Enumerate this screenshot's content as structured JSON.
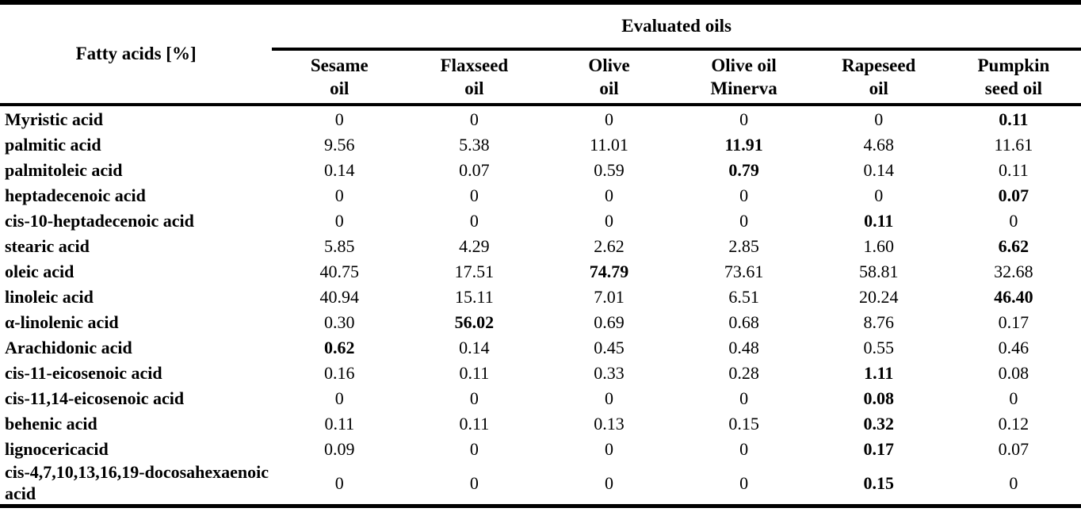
{
  "table": {
    "corner_header": "Fatty acids [%]",
    "group_header": "Evaluated oils",
    "columns": [
      {
        "key": "sesame-oil",
        "line1": "Sesame",
        "line2": "oil"
      },
      {
        "key": "flaxseed-oil",
        "line1": "Flaxseed",
        "line2": "oil"
      },
      {
        "key": "olive-oil",
        "line1": "Olive",
        "line2": "oil"
      },
      {
        "key": "olive-oil-minerva",
        "line1": "Olive oil",
        "line2": "Minerva"
      },
      {
        "key": "rapeseed-oil",
        "line1": "Rapeseed",
        "line2": "oil"
      },
      {
        "key": "pumpkin-seed-oil",
        "line1": "Pumpkin",
        "line2": "seed oil"
      }
    ],
    "rows": [
      {
        "label": "Myristic acid",
        "values": [
          "0",
          "0",
          "0",
          "0",
          "0",
          "0.11"
        ],
        "bold": [
          5
        ]
      },
      {
        "label": "palmitic acid",
        "values": [
          "9.56",
          "5.38",
          "11.01",
          "11.91",
          "4.68",
          "11.61"
        ],
        "bold": [
          3
        ]
      },
      {
        "label": "palmitoleic acid",
        "values": [
          "0.14",
          "0.07",
          "0.59",
          "0.79",
          "0.14",
          "0.11"
        ],
        "bold": [
          3
        ]
      },
      {
        "label": "heptadecenoic acid",
        "values": [
          "0",
          "0",
          "0",
          "0",
          "0",
          "0.07"
        ],
        "bold": [
          5
        ]
      },
      {
        "label": "cis-10-heptadecenoic acid",
        "values": [
          "0",
          "0",
          "0",
          "0",
          "0.11",
          "0"
        ],
        "bold": [
          4
        ]
      },
      {
        "label": "stearic acid",
        "values": [
          "5.85",
          "4.29",
          "2.62",
          "2.85",
          "1.60",
          "6.62"
        ],
        "bold": [
          5
        ]
      },
      {
        "label": "oleic acid",
        "values": [
          "40.75",
          "17.51",
          "74.79",
          "73.61",
          "58.81",
          "32.68"
        ],
        "bold": [
          2
        ]
      },
      {
        "label": "linoleic acid",
        "values": [
          "40.94",
          "15.11",
          "7.01",
          "6.51",
          "20.24",
          "46.40"
        ],
        "bold": [
          5
        ]
      },
      {
        "label": "α-linolenic acid",
        "values": [
          "0.30",
          "56.02",
          "0.69",
          "0.68",
          "8.76",
          "0.17"
        ],
        "bold": [
          1
        ]
      },
      {
        "label": "Arachidonic acid",
        "values": [
          "0.62",
          "0.14",
          "0.45",
          "0.48",
          "0.55",
          "0.46"
        ],
        "bold": [
          0
        ]
      },
      {
        "label": "cis-11-eicosenoic acid",
        "values": [
          "0.16",
          "0.11",
          "0.33",
          "0.28",
          "1.11",
          "0.08"
        ],
        "bold": [
          4
        ]
      },
      {
        "label": "cis-11,14-eicosenoic acid",
        "values": [
          "0",
          "0",
          "0",
          "0",
          "0.08",
          "0"
        ],
        "bold": [
          4
        ]
      },
      {
        "label": "behenic acid",
        "values": [
          "0.11",
          "0.11",
          "0.13",
          "0.15",
          "0.32",
          "0.12"
        ],
        "bold": [
          4
        ]
      },
      {
        "label": "lignocericacid",
        "values": [
          "0.09",
          "0",
          "0",
          "0",
          "0.17",
          "0.07"
        ],
        "bold": [
          4
        ]
      },
      {
        "label": "cis-4,7,10,13,16,19-docosahexaenoic acid",
        "values": [
          "0",
          "0",
          "0",
          "0",
          "0.15",
          "0"
        ],
        "bold": [
          4
        ]
      }
    ]
  },
  "colors": {
    "page_background": "#ffffff",
    "text": "#000000",
    "rule": "#000000"
  }
}
